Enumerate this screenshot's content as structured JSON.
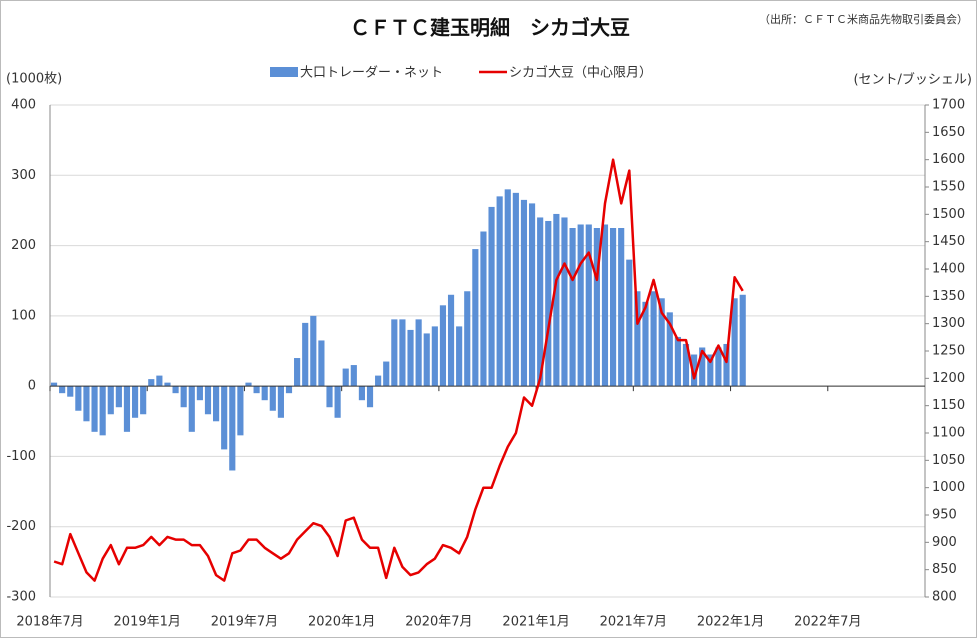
{
  "chart_data": {
    "type": "bar",
    "title": "ＣＦＴＣ建玉明細　シカゴ大豆",
    "source": "（出所：ＣＦＴＣ米商品先物取引委員会）",
    "y_label": "(1000枚)",
    "y2_label": "(セント/ブッシェル)",
    "categories": [
      "2018年7月",
      null,
      null,
      null,
      null,
      null,
      null,
      null,
      null,
      null,
      null,
      null,
      "2019年1月",
      null,
      null,
      null,
      null,
      null,
      null,
      null,
      null,
      null,
      null,
      null,
      "2019年7月",
      null,
      null,
      null,
      null,
      null,
      null,
      null,
      null,
      null,
      null,
      null,
      "2020年1月",
      null,
      null,
      null,
      null,
      null,
      null,
      null,
      null,
      null,
      null,
      null,
      "2020年7月",
      null,
      null,
      null,
      null,
      null,
      null,
      null,
      null,
      null,
      null,
      null,
      "2021年1月",
      null,
      null,
      null,
      null,
      null,
      null,
      null,
      null,
      null,
      null,
      null,
      "2021年7月",
      null,
      null,
      null,
      null,
      null,
      null,
      null,
      null,
      null,
      null,
      null,
      "2022年1月",
      null,
      null,
      null,
      null,
      null,
      null,
      null,
      null,
      null,
      null,
      null,
      "2022年7月",
      null,
      null,
      null,
      null,
      null,
      null,
      null,
      null,
      null,
      null,
      null
    ],
    "series": [
      {
        "name": "大口トレーダー・ネット",
        "type": "bar",
        "color": "#5b8fd6",
        "values": [
          5,
          -10,
          -15,
          -35,
          -50,
          -65,
          -70,
          -40,
          -30,
          -65,
          -45,
          -40,
          10,
          15,
          5,
          -10,
          -30,
          -65,
          -20,
          -40,
          -50,
          -90,
          -120,
          -70,
          5,
          -10,
          -20,
          -35,
          -45,
          -10,
          40,
          90,
          100,
          65,
          -30,
          -45,
          25,
          30,
          -20,
          -30,
          15,
          35,
          95,
          95,
          80,
          95,
          75,
          85,
          115,
          130,
          85,
          135,
          195,
          220,
          255,
          270,
          280,
          275,
          265,
          260,
          240,
          235,
          245,
          240,
          225,
          230,
          230,
          225,
          230,
          225,
          225,
          180,
          135,
          120,
          135,
          125,
          105,
          70,
          60,
          45,
          55,
          45,
          55,
          60,
          125,
          130,
          null,
          null,
          null,
          null,
          null,
          null,
          null,
          null,
          null,
          null,
          null,
          null,
          null,
          null,
          null,
          null,
          null,
          null,
          null,
          null,
          null,
          null
        ]
      },
      {
        "name": "シカゴ大豆（中心限月）",
        "type": "line",
        "color": "#e60000",
        "axis": "y2",
        "values": [
          865,
          860,
          915,
          880,
          845,
          830,
          870,
          895,
          860,
          890,
          890,
          895,
          910,
          895,
          910,
          905,
          905,
          895,
          895,
          875,
          840,
          830,
          880,
          885,
          905,
          905,
          890,
          880,
          870,
          880,
          905,
          920,
          935,
          930,
          910,
          875,
          940,
          945,
          905,
          890,
          890,
          835,
          890,
          855,
          840,
          845,
          860,
          870,
          895,
          890,
          880,
          910,
          960,
          1000,
          1000,
          1040,
          1075,
          1100,
          1165,
          1150,
          1200,
          1290,
          1380,
          1410,
          1380,
          1410,
          1430,
          1380,
          1520,
          1600,
          1520,
          1580,
          1300,
          1330,
          1380,
          1320,
          1300,
          1270,
          1270,
          1200,
          1250,
          1230,
          1260,
          1230,
          1385,
          1360,
          null,
          null,
          null,
          null,
          null,
          null,
          null,
          null,
          null,
          null,
          null,
          null,
          null,
          null,
          null,
          null,
          null,
          null,
          null,
          null,
          null,
          null
        ]
      }
    ],
    "ylim": [
      -300,
      400
    ],
    "yticks": [
      -300,
      -200,
      -100,
      0,
      100,
      200,
      300,
      400
    ],
    "y2lim": [
      800,
      1700
    ],
    "y2ticks": [
      800,
      850,
      900,
      950,
      1000,
      1050,
      1100,
      1150,
      1200,
      1250,
      1300,
      1350,
      1400,
      1450,
      1500,
      1550,
      1600,
      1650,
      1700
    ],
    "grid": true
  }
}
